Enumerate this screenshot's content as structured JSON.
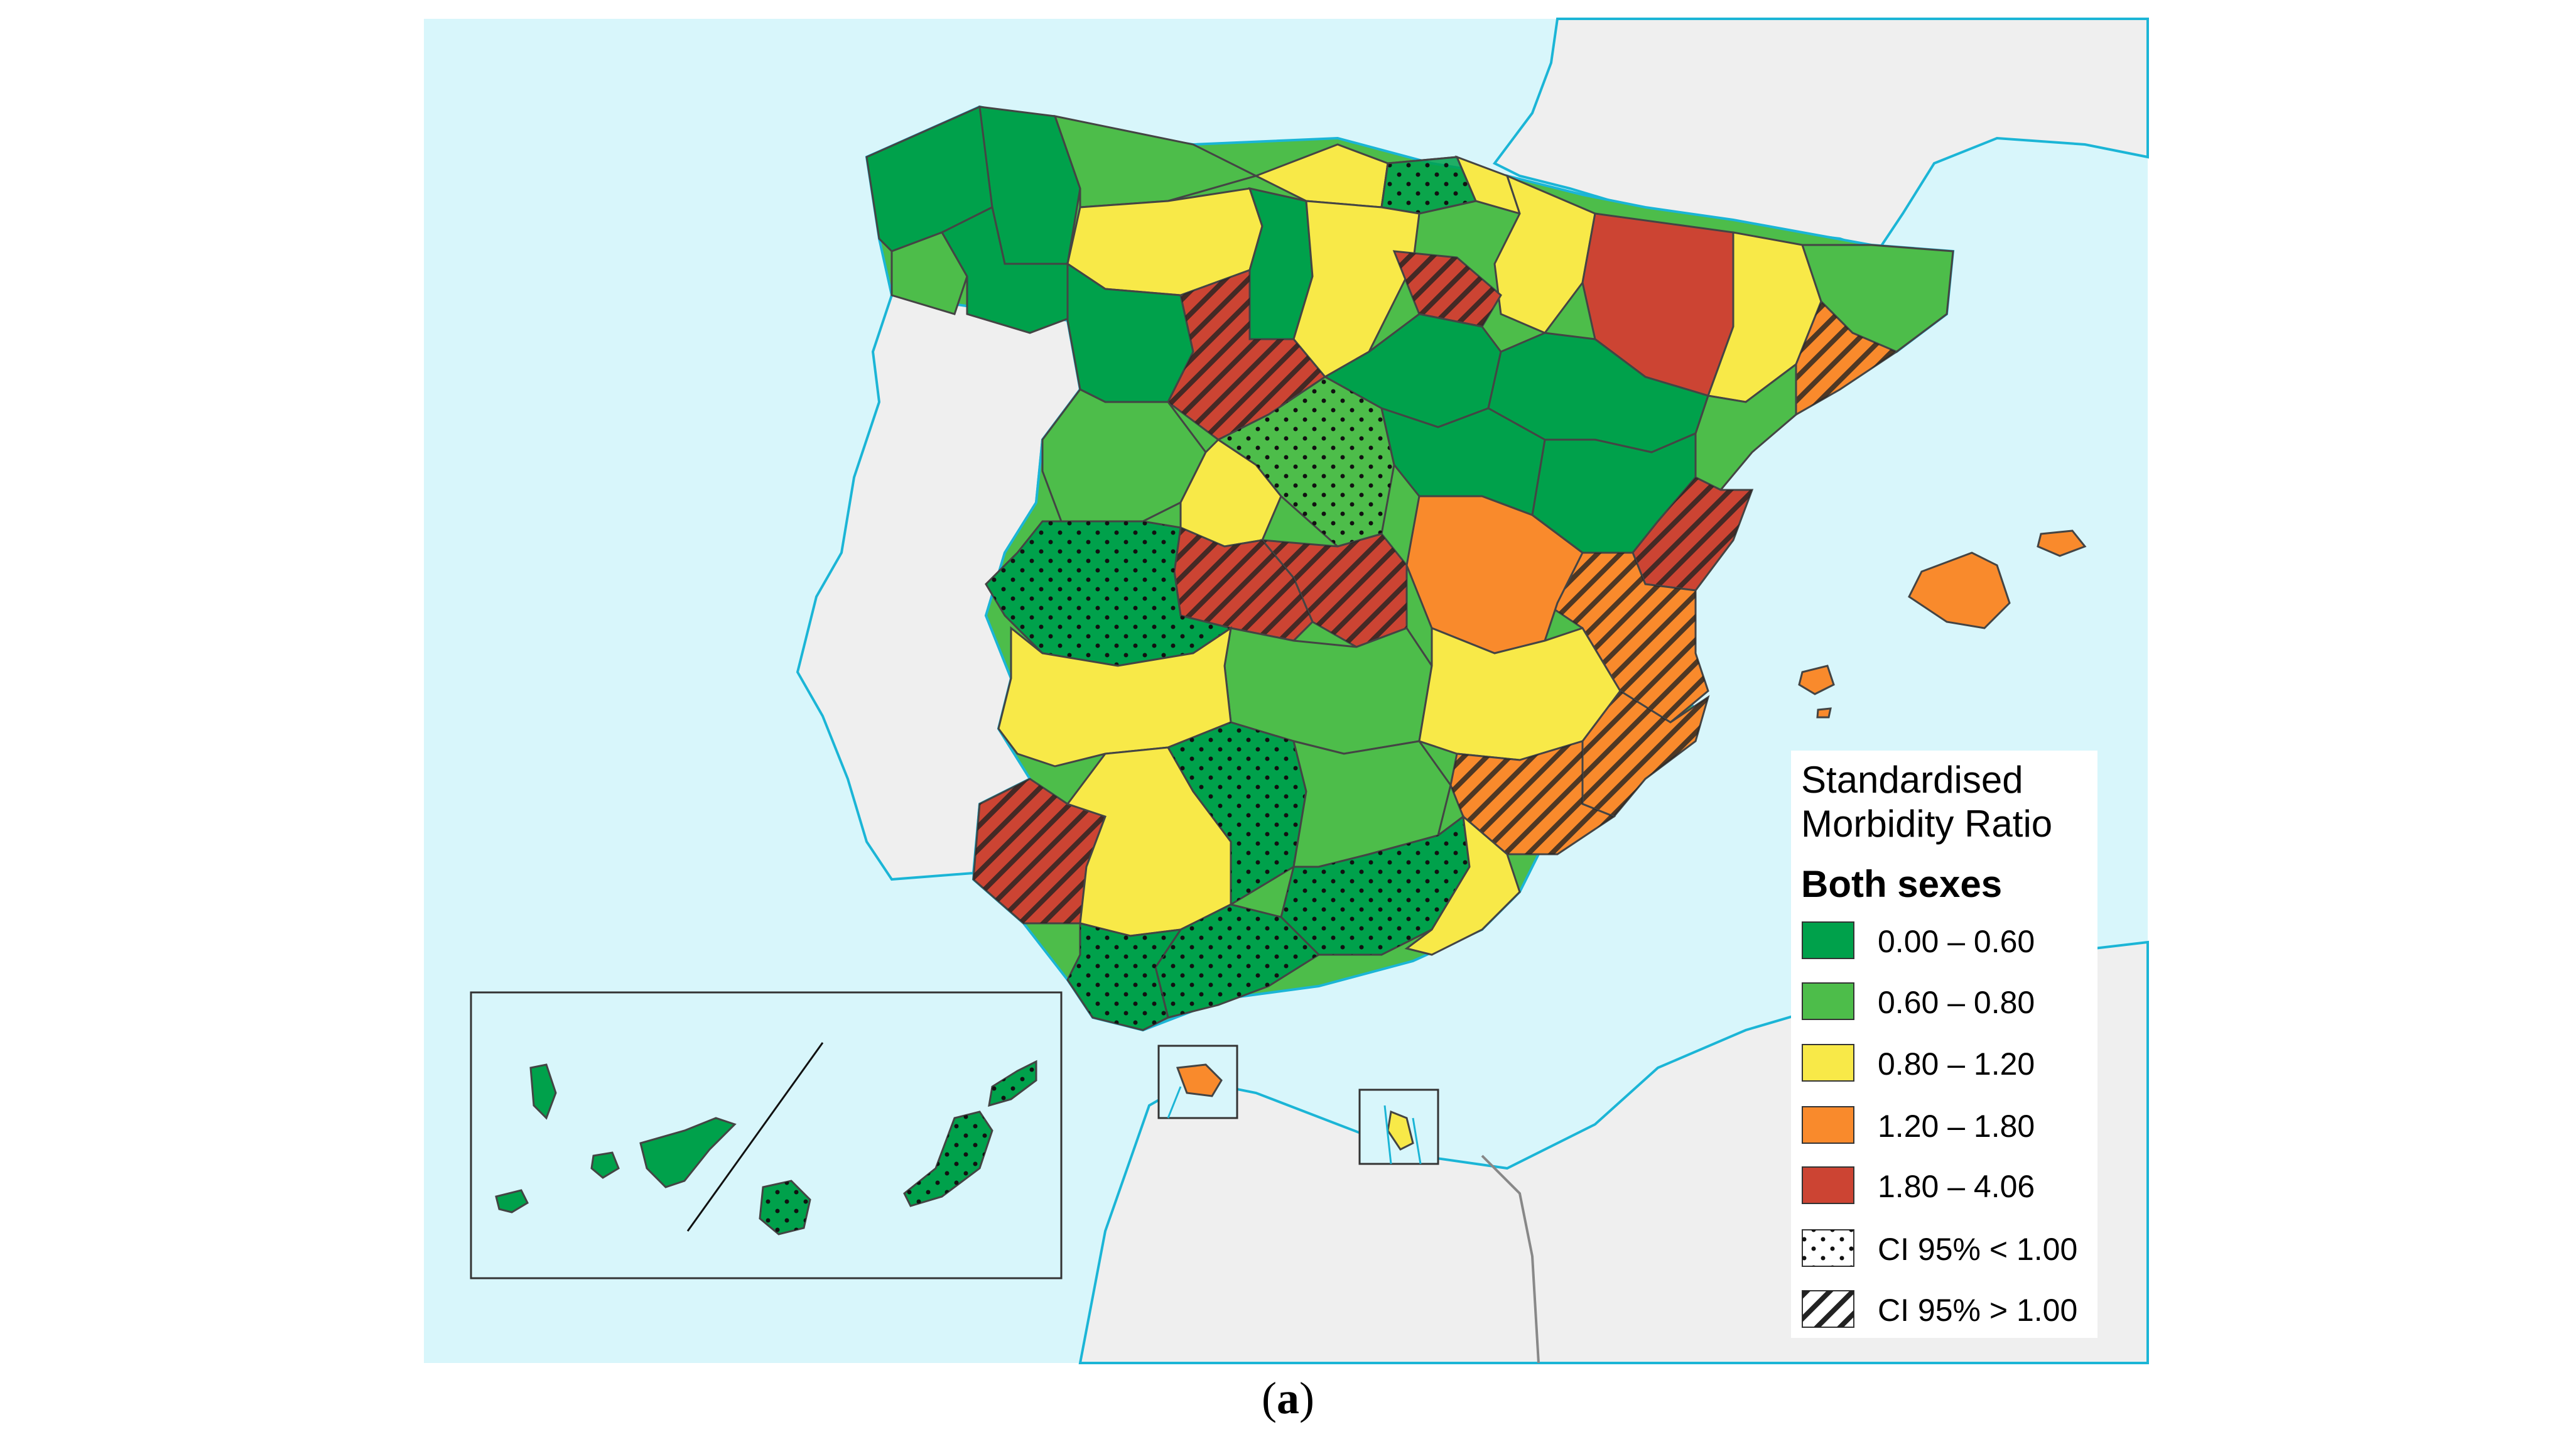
{
  "legend": {
    "title_line1": "Standardised",
    "title_line2": "Morbidity Ratio",
    "subtitle": "Both sexes",
    "items": [
      {
        "label": "0.00 – 0.60",
        "color": "#00a14b",
        "pattern": "none"
      },
      {
        "label": "0.60 – 0.80",
        "color": "#4dbd4a",
        "pattern": "none"
      },
      {
        "label": "0.80 – 1.20",
        "color": "#f8e948",
        "pattern": "none"
      },
      {
        "label": "1.20 – 1.80",
        "color": "#f98a2c",
        "pattern": "none"
      },
      {
        "label": "1.80 – 4.06",
        "color": "#cc4433",
        "pattern": "none"
      },
      {
        "label": "CI 95% < 1.00",
        "color": "#ffffff",
        "pattern": "dots"
      },
      {
        "label": "CI 95% > 1.00",
        "color": "#ffffff",
        "pattern": "hatch"
      }
    ]
  },
  "caption": {
    "open": "(",
    "letter": "a",
    "close": ")"
  },
  "colors": {
    "sea": "#d8f6fb",
    "land_foreign": "#efefef",
    "coast_line": "#1bb5d6",
    "border": "#444444"
  }
}
